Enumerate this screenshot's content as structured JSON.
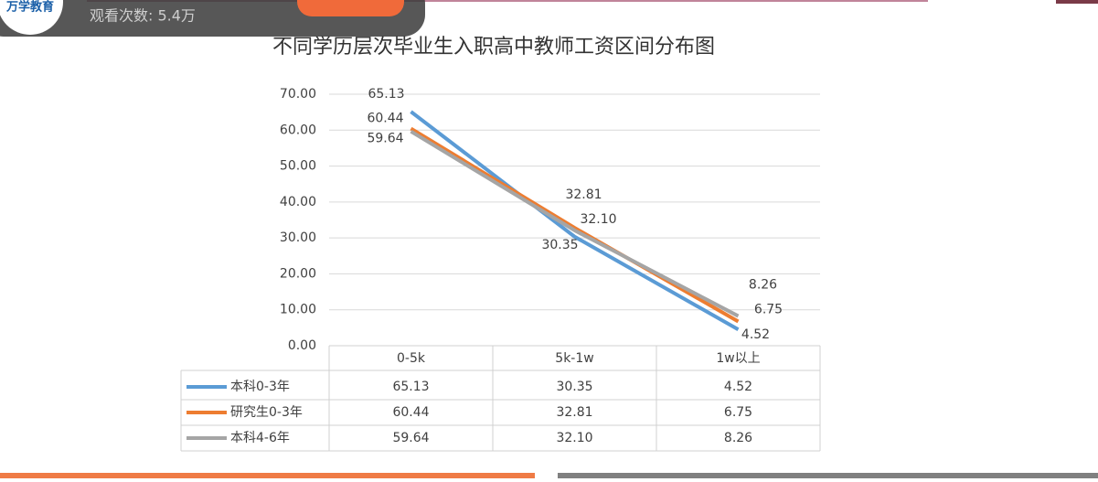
{
  "overlay": {
    "logo": "万学教育",
    "views": "观看次数: 5.4万"
  },
  "chart_data": {
    "type": "line",
    "title": "不同学历层次毕业生入职高中教师工资区间分布图",
    "categories": [
      "0-5k",
      "5k-1w",
      "1w以上"
    ],
    "series": [
      {
        "name": "本科0-3年",
        "color": "#5b9bd5",
        "values": [
          65.13,
          30.35,
          4.52
        ]
      },
      {
        "name": "研究生0-3年",
        "color": "#ed7d31",
        "values": [
          60.44,
          32.81,
          6.75
        ]
      },
      {
        "name": "本科4-6年",
        "color": "#a5a5a5",
        "values": [
          59.64,
          32.1,
          8.26
        ],
        "value_labels": [
          "59.64",
          "32.10",
          "8.26"
        ]
      }
    ],
    "ylim": [
      0,
      70
    ],
    "yticks": [
      {
        "value": 0,
        "label": "0.00"
      },
      {
        "value": 10,
        "label": "10.00"
      },
      {
        "value": 20,
        "label": "20.00"
      },
      {
        "value": 30,
        "label": "30.00"
      },
      {
        "value": 40,
        "label": "40.00"
      },
      {
        "value": 50,
        "label": "50.00"
      },
      {
        "value": 60,
        "label": "60.00"
      },
      {
        "value": 70,
        "label": "70.00"
      }
    ],
    "grid": true,
    "data_table": true
  }
}
